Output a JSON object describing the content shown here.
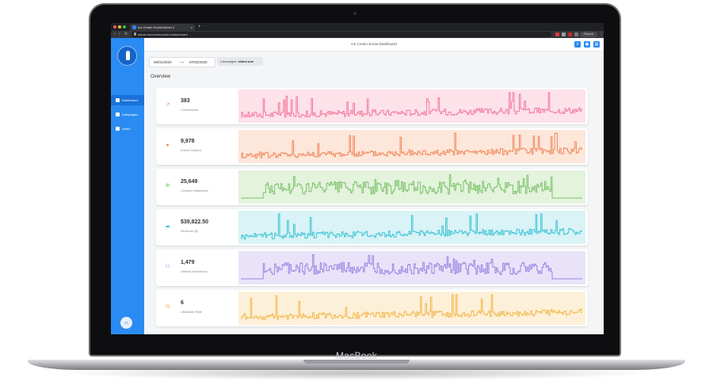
{
  "device": {
    "brand_label": "MacBook"
  },
  "browser": {
    "tab_title": "Ice Cream Social Admin 2",
    "tab_close": "×",
    "new_tab": "+",
    "url": "admin.icecreamsocial.io/dashboard",
    "profile_status": "Paused",
    "nav_back": "‹",
    "nav_forward": "›",
    "nav_reload": "↻",
    "menu": "⋮"
  },
  "app": {
    "title": "Ice Cream Social Dashboard",
    "brand_color": "#2a8cf2",
    "sidebar": {
      "items": [
        {
          "label": "Dashboard",
          "icon": "grid-icon",
          "active": true
        },
        {
          "label": "Campaigns",
          "icon": "megaphone-icon",
          "active": false
        },
        {
          "label": "Users",
          "icon": "users-icon",
          "active": false
        }
      ],
      "avatar_initials": "CF"
    },
    "toolbar_icons": [
      "upload-icon",
      "save-icon",
      "bookmark-icon"
    ],
    "filters": {
      "date_start": "06/01/2020",
      "date_arrow": "⟶",
      "date_end": "07/02/2020",
      "campaign_prefix": "Campaigns:",
      "campaign_value": "select one"
    },
    "overview_title": "Overview",
    "metrics": [
      {
        "value": "383",
        "label": "Conversions",
        "icon": "trend-icon",
        "color": "#f27aa0",
        "bg": "#fde2ea"
      },
      {
        "value": "9,978",
        "label": "Invites Clicked",
        "icon": "pointer-icon",
        "color": "#f08a5d",
        "bg": "#fde6da"
      },
      {
        "value": "25,649",
        "label": "Created Influencers",
        "icon": "user-plus-icon",
        "color": "#7cc26a",
        "bg": "#e3f3dc"
      },
      {
        "value": "$39,822.50",
        "label": "Revenue ($)",
        "icon": "money-icon",
        "color": "#3ec3d6",
        "bg": "#d9f3f6"
      },
      {
        "value": "1,479",
        "label": "Utilized Influencers",
        "icon": "user-check-icon",
        "color": "#9a86e0",
        "bg": "#e9e3fa"
      },
      {
        "value": "6",
        "label": "Utilization Rate",
        "icon": "percent-icon",
        "color": "#f2b84f",
        "bg": "#fdf0d8"
      }
    ]
  }
}
